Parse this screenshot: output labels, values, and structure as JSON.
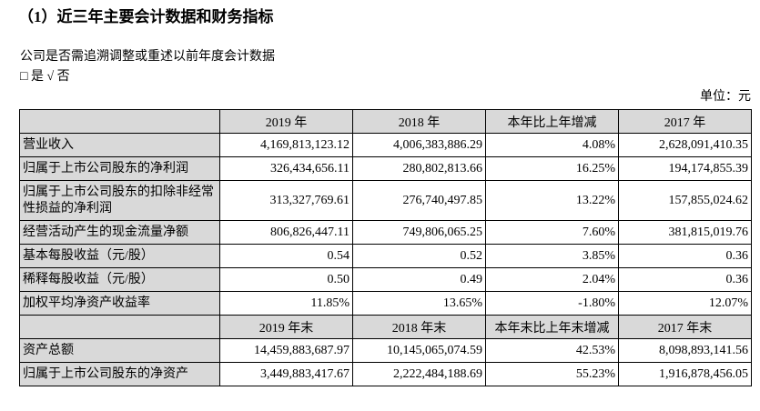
{
  "title": "（1）近三年主要会计数据和财务指标",
  "question": "公司是否需追溯调整或重述以前年度会计数据",
  "option": "□ 是 √ 否",
  "unit": "单位：元",
  "header1": [
    "",
    "2019 年",
    "2018 年",
    "本年比上年增减",
    "2017 年"
  ],
  "rows1": [
    [
      "营业收入",
      "4,169,813,123.12",
      "4,006,383,886.29",
      "4.08%",
      "2,628,091,410.35"
    ],
    [
      "归属于上市公司股东的净利润",
      "326,434,656.11",
      "280,802,813.66",
      "16.25%",
      "194,174,855.39"
    ],
    [
      "归属于上市公司股东的扣除非经常性损益的净利润",
      "313,327,769.61",
      "276,740,497.85",
      "13.22%",
      "157,855,024.62"
    ],
    [
      "经营活动产生的现金流量净额",
      "806,826,447.11",
      "749,806,065.25",
      "7.60%",
      "381,815,019.76"
    ],
    [
      "基本每股收益（元/股）",
      "0.54",
      "0.52",
      "3.85%",
      "0.36"
    ],
    [
      "稀释每股收益（元/股）",
      "0.50",
      "0.49",
      "2.04%",
      "0.36"
    ],
    [
      "加权平均净资产收益率",
      "11.85%",
      "13.65%",
      "-1.80%",
      "12.07%"
    ]
  ],
  "header2": [
    "",
    "2019 年末",
    "2018 年末",
    "本年末比上年末增减",
    "2017 年末"
  ],
  "rows2": [
    [
      "资产总额",
      "14,459,883,687.97",
      "10,145,065,074.59",
      "42.53%",
      "8,098,893,141.56"
    ],
    [
      "归属于上市公司股东的净资产",
      "3,449,883,417.67",
      "2,222,484,188.69",
      "55.23%",
      "1,916,878,456.05"
    ]
  ]
}
